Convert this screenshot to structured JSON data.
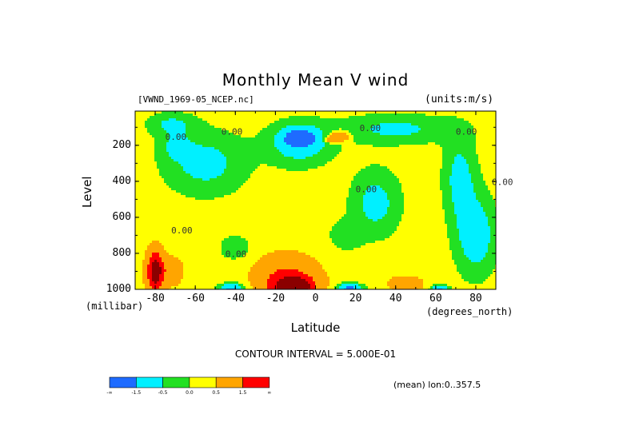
{
  "chart_data": {
    "type": "heatmap",
    "title": "Monthly Mean V wind",
    "subtitle_left": "[VWND_1969-05_NCEP.nc]",
    "subtitle_right": "(units:m/s)",
    "xlabel": "Latitude",
    "xunit": "(degrees_north)",
    "ylabel": "Level",
    "yunit": "(millibar)",
    "xlim": [
      -90,
      90
    ],
    "ylim": [
      1000,
      10
    ],
    "x_ticks": [
      "-80",
      "-60",
      "-40",
      "-20",
      "0",
      "20",
      "40",
      "60",
      "80"
    ],
    "x_tick_values": [
      -80,
      -60,
      -40,
      -20,
      0,
      20,
      40,
      60,
      80
    ],
    "y_ticks": [
      "200",
      "400",
      "600",
      "800",
      "1000"
    ],
    "y_tick_values": [
      200,
      400,
      600,
      800,
      1000
    ],
    "contour_interval_text": "CONTOUR INTERVAL = 5.000E-01",
    "contour_label": "0.00",
    "footnote": "(mean) lon:0..357.5",
    "levels": [
      -1.5,
      -0.5,
      0,
      0.5,
      1.5
    ],
    "colorbar_labels": [
      "-∞",
      "-1.5",
      "-0.5",
      "0.0",
      "0.5",
      "1.5",
      "∞"
    ],
    "colors": [
      "#1e6bff",
      "#00f0ff",
      "#22e022",
      "#ffff00",
      "#ffa500",
      "#ff0000"
    ],
    "extreme_color": "#8b0000",
    "background_field": 0.25,
    "features": [
      {
        "lat": -55,
        "lev": 300,
        "sx": 20,
        "sy": 170,
        "amp": -1.0
      },
      {
        "lat": -72,
        "lev": 80,
        "sx": 12,
        "sy": 60,
        "amp": -0.8
      },
      {
        "lat": -8,
        "lev": 190,
        "sx": 16,
        "sy": 120,
        "amp": -1.2
      },
      {
        "lat": -8,
        "lev": 160,
        "sx": 7,
        "sy": 45,
        "amp": -2.5
      },
      {
        "lat": 12,
        "lev": 150,
        "sx": 5,
        "sy": 30,
        "amp": 1.5
      },
      {
        "lat": 8,
        "lev": 170,
        "sx": 3,
        "sy": 15,
        "amp": 1.3
      },
      {
        "lat": 30,
        "lev": 520,
        "sx": 12,
        "sy": 180,
        "amp": -1.0
      },
      {
        "lat": 15,
        "lev": 700,
        "sx": 8,
        "sy": 80,
        "amp": -0.6
      },
      {
        "lat": 72,
        "lev": 380,
        "sx": 8,
        "sy": 230,
        "amp": -1.0
      },
      {
        "lat": 80,
        "lev": 700,
        "sx": 10,
        "sy": 220,
        "amp": -1.2
      },
      {
        "lat": 40,
        "lev": 110,
        "sx": 28,
        "sy": 80,
        "amp": -0.9
      },
      {
        "lat": -70,
        "lev": 200,
        "sx": 8,
        "sy": 80,
        "amp": -0.6
      },
      {
        "lat": -40,
        "lev": 770,
        "sx": 8,
        "sy": 70,
        "amp": -0.6
      },
      {
        "lat": -12,
        "lev": 990,
        "sx": 12,
        "sy": 70,
        "amp": 2.8
      },
      {
        "lat": -8,
        "lev": 980,
        "sx": 5,
        "sy": 35,
        "amp": 1.5
      },
      {
        "lat": -15,
        "lev": 900,
        "sx": 15,
        "sy": 100,
        "amp": 1.0
      },
      {
        "lat": -42,
        "lev": 1000,
        "sx": 6,
        "sy": 30,
        "amp": -2.0
      },
      {
        "lat": 17,
        "lev": 1000,
        "sx": 6,
        "sy": 30,
        "amp": -2.2
      },
      {
        "lat": 62,
        "lev": 1000,
        "sx": 4,
        "sy": 22,
        "amp": -2.0
      },
      {
        "lat": 45,
        "lev": 970,
        "sx": 8,
        "sy": 40,
        "amp": 1.0
      },
      {
        "lat": -80,
        "lev": 900,
        "sx": 4,
        "sy": 110,
        "amp": 3.0
      },
      {
        "lat": -72,
        "lev": 900,
        "sx": 6,
        "sy": 80,
        "amp": 0.8
      }
    ]
  }
}
